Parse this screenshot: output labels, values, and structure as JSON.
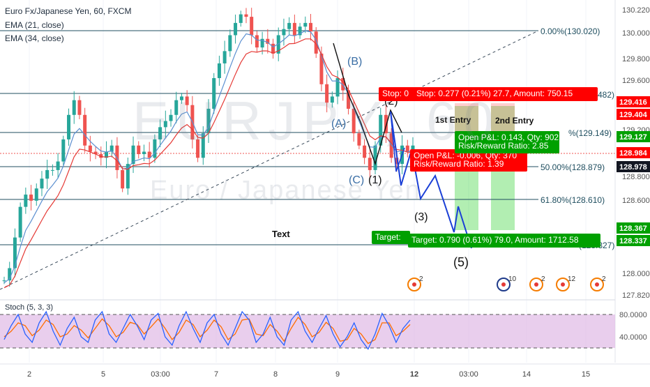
{
  "legend": {
    "symbol": "Euro Fx/Japanese Yen, 60, FXCM",
    "ema21": "EMA (21, close)",
    "ema34": "EMA (34, close)"
  },
  "watermark": {
    "ticker": "EURJPY, 60",
    "name": "Euro / Japanese Yen"
  },
  "colors": {
    "up_candle": "#26a69a",
    "down_candle": "#ef5350",
    "ema21": "#5b8fd0",
    "ema34": "#e53935",
    "wave": "#1e3a8a",
    "projection": "#1a3fd6",
    "stop": "#ff0000",
    "target": "#00a000",
    "stoch_k": "#2962ff",
    "stoch_d": "#ff6d00",
    "stoch_band": "#e1bee7"
  },
  "fib_levels": [
    {
      "label": "0.00%(130.020)",
      "price": 130.02
    },
    {
      "label": "%(129.149)",
      "price": 129.149
    },
    {
      "label": "50.00%(128.879)",
      "price": 128.879
    },
    {
      "label": "61.80%(128.610)",
      "price": 128.61
    },
    {
      "label": "(128.327)",
      "price": 128.327
    }
  ],
  "wave_labels": [
    {
      "text": "(B)"
    },
    {
      "text": "(A)"
    },
    {
      "text": "(C)"
    },
    {
      "text": "(1)"
    },
    {
      "text": "(2)"
    },
    {
      "text": "(3)"
    },
    {
      "text": "(5)"
    }
  ],
  "annotations": {
    "text_label": "Text",
    "first_entry": "1st Entry",
    "second_entry": "2nd Entry"
  },
  "orders": {
    "stop_short": "Stop: 0",
    "stop_full": "Stop: 0.277 (0.21%) 27.7, Amount: 750.15",
    "stop_right": "482)",
    "open1_pl": "Open P&L: 0.143, Qty: 902",
    "open1_rr": "Risk/Reward Ratio: 2.85",
    "open2_pl": "Open P&L: -0.006, Qty: 370",
    "open2_rr": "Risk/Reward Ratio: 1.39",
    "target_short": "Target:",
    "target_full": "Target: 0.790 (0.61%) 79.0, Amount: 1712.58"
  },
  "price_axis": {
    "ticks": [
      "130.220",
      "130.000",
      "129.800",
      "129.600",
      "129.200",
      "128.800",
      "128.600",
      "128.000",
      "127.820"
    ],
    "tags": [
      {
        "text": "129.416",
        "color": "#ff0000"
      },
      {
        "text": "129.404",
        "color": "#ff0000"
      },
      {
        "text": "129.127",
        "color": "#00a000"
      },
      {
        "text": "128.984",
        "color": "#ff0000"
      },
      {
        "text": "128.978",
        "color": "#131722"
      },
      {
        "text": "128.367",
        "color": "#00a000"
      },
      {
        "text": "128.337",
        "color": "#00a000"
      }
    ]
  },
  "time_axis": [
    "2",
    "5",
    "03:00",
    "7",
    "8",
    "9",
    "12",
    "03:00",
    "14",
    "15"
  ],
  "event_icons": [
    "2",
    "10",
    "2",
    "12",
    "2"
  ],
  "stoch": {
    "label": "Stoch (5, 3, 3)",
    "ticks": [
      "80.0000",
      "40.0000"
    ],
    "upper": 80,
    "lower": 20
  },
  "chart_data": {
    "type": "candlestick",
    "title": "Euro Fx/Japanese Yen, 60, FXCM",
    "ylim": [
      127.82,
      130.22
    ],
    "close_path": [
      127.95,
      128.05,
      128.3,
      128.55,
      128.65,
      128.6,
      128.7,
      128.78,
      128.85,
      128.85,
      128.92,
      129.1,
      129.3,
      129.42,
      129.3,
      129.05,
      129.0,
      128.98,
      128.95,
      129.0,
      129.05,
      128.85,
      128.7,
      128.9,
      129.05,
      128.98,
      129.0,
      128.95,
      129.1,
      129.2,
      129.25,
      129.3,
      129.42,
      129.45,
      129.38,
      129.1,
      128.95,
      129.15,
      129.35,
      129.6,
      129.72,
      129.82,
      129.95,
      130.05,
      130.12,
      130.1,
      129.95,
      129.85,
      129.92,
      129.88,
      129.8,
      129.95,
      130.0,
      130.05,
      129.95,
      130.02,
      130.05,
      129.98,
      129.8,
      129.55,
      129.4,
      129.45,
      129.6,
      129.5,
      129.35,
      129.15,
      129.05,
      128.95,
      128.85,
      129.05,
      129.3,
      129.15,
      128.95,
      128.9,
      129.05,
      129.0,
      129.05
    ],
    "projection": [
      129.05,
      128.78,
      128.62,
      128.88,
      128.55,
      128.62,
      128.35,
      128.28
    ],
    "trendline": [
      127.86,
      130.02
    ],
    "stoch_k": [
      35,
      60,
      80,
      45,
      30,
      65,
      85,
      50,
      25,
      55,
      75,
      40,
      30,
      70,
      85,
      45,
      30,
      55,
      80,
      60,
      35,
      70,
      82,
      40,
      25,
      60,
      85,
      55,
      30,
      65,
      80,
      45,
      25,
      55,
      85,
      70,
      30,
      45,
      75,
      40,
      25,
      70,
      85,
      50,
      30,
      55,
      78,
      45,
      22,
      40,
      65,
      35,
      18,
      45,
      82,
      60,
      30,
      55,
      70
    ],
    "stoch_d": [
      40,
      50,
      65,
      60,
      42,
      52,
      70,
      62,
      40,
      45,
      60,
      52,
      38,
      55,
      72,
      60,
      40,
      48,
      66,
      62,
      45,
      58,
      72,
      55,
      35,
      48,
      70,
      62,
      40,
      52,
      70,
      58,
      35,
      45,
      70,
      72,
      45,
      42,
      62,
      50,
      32,
      55,
      75,
      62,
      40,
      48,
      66,
      55,
      32,
      35,
      55,
      45,
      28,
      35,
      65,
      65,
      42,
      50,
      62
    ]
  }
}
